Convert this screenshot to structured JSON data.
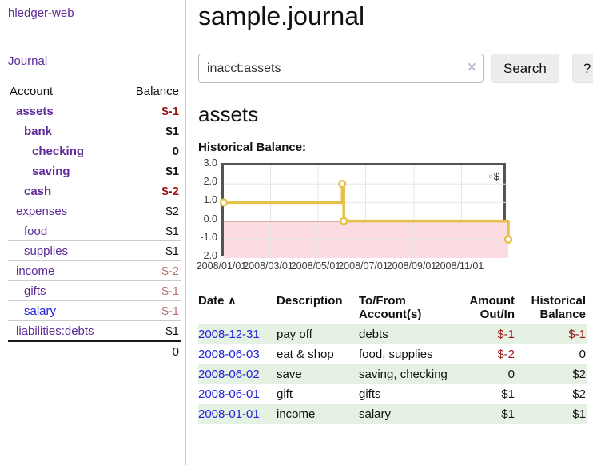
{
  "app": {
    "title": "hledger-web"
  },
  "sidebar": {
    "journal_link": "Journal",
    "table": {
      "account_header": "Account",
      "balance_header": "Balance",
      "accounts": [
        {
          "name": "assets",
          "balance": "$-1"
        },
        {
          "name": "bank",
          "balance": "$1"
        },
        {
          "name": "checking",
          "balance": "0"
        },
        {
          "name": "saving",
          "balance": "$1"
        },
        {
          "name": "cash",
          "balance": "$-2"
        },
        {
          "name": "expenses",
          "balance": "$2"
        },
        {
          "name": "food",
          "balance": "$1"
        },
        {
          "name": "supplies",
          "balance": "$1"
        },
        {
          "name": "income",
          "balance": "$-2"
        },
        {
          "name": "gifts",
          "balance": "$-1"
        },
        {
          "name": "salary",
          "balance": "$-1"
        },
        {
          "name": "liabilities:debts",
          "balance": "$1"
        }
      ],
      "total": "0"
    }
  },
  "main": {
    "title": "sample.journal",
    "search": {
      "query": "inacct:assets",
      "clear_icon": "×",
      "search_button": "Search",
      "help_button": "?"
    },
    "account_heading": "assets",
    "chart_heading": "Historical Balance:",
    "transactions": {
      "headers": [
        "Date",
        "Description",
        "To/From Account(s)",
        "Amount Out/In",
        "Historical Balance"
      ],
      "sort_icon": "∧",
      "rows": [
        {
          "date": "2008-12-31",
          "description": "pay off",
          "accounts": "debts",
          "amount": "$-1",
          "balance": "$-1"
        },
        {
          "date": "2008-06-03",
          "description": "eat & shop",
          "accounts": "food, supplies",
          "amount": "$-2",
          "balance": "0"
        },
        {
          "date": "2008-06-02",
          "description": "save",
          "accounts": "saving, checking",
          "amount": "0",
          "balance": "$2"
        },
        {
          "date": "2008-06-01",
          "description": "gift",
          "accounts": "gifts",
          "amount": "$1",
          "balance": "$2"
        },
        {
          "date": "2008-01-01",
          "description": "income",
          "accounts": "salary",
          "amount": "$1",
          "balance": "$1"
        }
      ]
    }
  },
  "chart_data": {
    "type": "line",
    "title": "Historical Balance:",
    "series": [
      {
        "name": "$",
        "step": true,
        "points": [
          [
            "2008/01/01",
            1
          ],
          [
            "2008/06/01",
            2
          ],
          [
            "2008/06/03",
            0
          ],
          [
            "2008/12/31",
            -1
          ]
        ]
      }
    ],
    "xlim": [
      "2008/01/01",
      "2008/12/31"
    ],
    "ylim": [
      -2,
      3
    ],
    "yticks": [
      3.0,
      2.0,
      1.0,
      0.0,
      -1.0,
      -2.0
    ],
    "xticks": [
      "2008/01/01",
      "2008/03/01",
      "2008/05/01",
      "2008/07/01",
      "2008/09/01",
      "2008/11/01"
    ],
    "legend_position": "top-right",
    "grid": true,
    "line_color": "#e7c04a",
    "point_fill": "#ffffff",
    "negative_fill": "#fbdde1",
    "zero_line_color": "#8e0b0b",
    "grid_color": "#e6e6e6"
  },
  "colors": {
    "link_purple": "#5e2b97",
    "link_blue": "#2323dd",
    "negative_strong": "#9b1515",
    "negative_soft": "#b87272",
    "row_green": "#e5f1e3"
  }
}
